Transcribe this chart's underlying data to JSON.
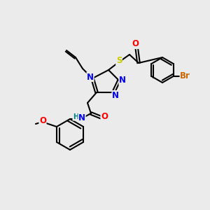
{
  "background_color": "#ebebeb",
  "atom_colors": {
    "N": "#0000ff",
    "O": "#ff0000",
    "S": "#cccc00",
    "Br": "#cc6600",
    "C": "#000000",
    "H": "#008080"
  },
  "bond_color": "#000000",
  "bond_lw": 1.5,
  "font_size": 7.5,
  "font_size_large": 8.5
}
